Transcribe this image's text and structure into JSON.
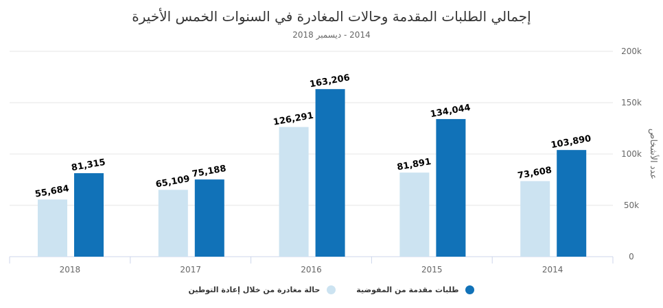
{
  "chart_data": {
    "type": "bar",
    "title": "إجمالي الطلبات المقدمة وحالات المغادرة في السنوات الخمس الأخيرة",
    "subtitle": "2014 - ديسمبر 2018",
    "ylabel": "عدد الأشخاص",
    "xlabel": "",
    "categories": [
      "2018",
      "2017",
      "2016",
      "2015",
      "2014"
    ],
    "ylim": [
      0,
      200000
    ],
    "yticks": [
      "0",
      "50k",
      "100k",
      "150k",
      "200k"
    ],
    "ytick_values": [
      0,
      50000,
      100000,
      150000,
      200000
    ],
    "grid": true,
    "legend_position": "bottom",
    "y_axis_side": "right",
    "series": [
      {
        "name": "حالة مغادرة من خلال إعادة التوطين",
        "color": "#cce3f1",
        "values": [
          55684,
          65109,
          126291,
          81891,
          73608
        ],
        "labels": [
          "55,684",
          "65,109",
          "126,291",
          "81,891",
          "73,608"
        ]
      },
      {
        "name": "طلبات مقدمة من المفوضية",
        "color": "#1172b8",
        "values": [
          81315,
          75188,
          163206,
          134044,
          103890
        ],
        "labels": [
          "81,315",
          "75,188",
          "163,206",
          "134,044",
          "103,890"
        ]
      }
    ]
  }
}
